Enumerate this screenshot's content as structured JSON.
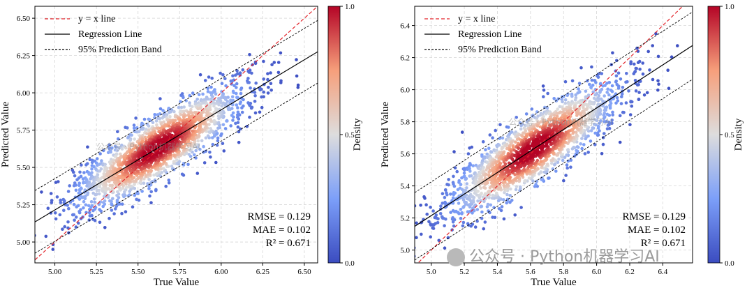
{
  "chart_data": [
    {
      "type": "scatter",
      "title": "",
      "xlabel": "True Value",
      "ylabel": "Predicted Value",
      "xlim": [
        4.88,
        6.58
      ],
      "ylim": [
        4.86,
        6.58
      ],
      "xticks": [
        "5.00",
        "5.25",
        "5.50",
        "5.75",
        "6.00",
        "6.25",
        "6.50"
      ],
      "xtick_values": [
        5.0,
        5.25,
        5.5,
        5.75,
        6.0,
        6.25,
        6.5
      ],
      "yticks": [
        "5.00",
        "5.25",
        "5.50",
        "5.75",
        "6.00",
        "6.25",
        "6.50"
      ],
      "ytick_values": [
        5.0,
        5.25,
        5.5,
        5.75,
        6.0,
        6.25,
        6.5
      ],
      "grid": true,
      "legend_position": "top-left",
      "legend": [
        {
          "label": "y = x line",
          "style": "red-dashed"
        },
        {
          "label": "Regression Line",
          "style": "black-solid"
        },
        {
          "label": "95% Prediction Band",
          "style": "black-dashed"
        }
      ],
      "identity_line": {
        "slope": 1,
        "intercept": 0
      },
      "regression_line": {
        "slope": 0.671,
        "intercept": 1.86
      },
      "prediction_band_offset": 0.21,
      "point_cloud": {
        "center": [
          5.62,
          5.63
        ],
        "sd_x": 0.27,
        "count": 2000,
        "seed": 7
      },
      "colorbar": {
        "label": "Density",
        "ticks": [
          "0.0",
          "0.5",
          "1.0"
        ],
        "colormap": "coolwarm"
      },
      "annotations": [
        "RMSE = 0.129",
        "MAE = 0.102",
        "R² = 0.671"
      ],
      "watermark": "公众号 · Python机器学习AI"
    },
    {
      "type": "scatter",
      "title": "",
      "xlabel": "True Value",
      "ylabel": "Predicted Value",
      "xlim": [
        4.9,
        6.58
      ],
      "ylim": [
        4.92,
        6.52
      ],
      "xticks": [
        "5.0",
        "5.2",
        "5.4",
        "5.6",
        "5.8",
        "6.0",
        "6.2",
        "6.4"
      ],
      "xtick_values": [
        5.0,
        5.2,
        5.4,
        5.6,
        5.8,
        6.0,
        6.2,
        6.4
      ],
      "yticks": [
        "5.0",
        "5.2",
        "5.4",
        "5.6",
        "5.8",
        "6.0",
        "6.2",
        "6.4"
      ],
      "ytick_values": [
        5.0,
        5.2,
        5.4,
        5.6,
        5.8,
        6.0,
        6.2,
        6.4
      ],
      "grid": true,
      "legend_position": "top-left",
      "legend": [
        {
          "label": "y = x line",
          "style": "red-dashed"
        },
        {
          "label": "Regression Line",
          "style": "black-solid"
        },
        {
          "label": "95% Prediction Band",
          "style": "black-dashed"
        }
      ],
      "identity_line": {
        "slope": 1,
        "intercept": 0
      },
      "regression_line": {
        "slope": 0.671,
        "intercept": 1.86
      },
      "prediction_band_offset": 0.21,
      "point_cloud": {
        "center": [
          5.62,
          5.63
        ],
        "sd_x": 0.27,
        "count": 2000,
        "seed": 11
      },
      "colorbar": {
        "label": "Density",
        "ticks": [
          "0.0",
          "0.5",
          "1.0"
        ],
        "colormap": "coolwarm"
      },
      "annotations": [
        "RMSE = 0.129",
        "MAE = 0.102",
        "R² = 0.671"
      ],
      "watermark": "公众号 · Python机器学习AI"
    }
  ],
  "watermark_bottom": "公众号 · Python机器学习AI"
}
